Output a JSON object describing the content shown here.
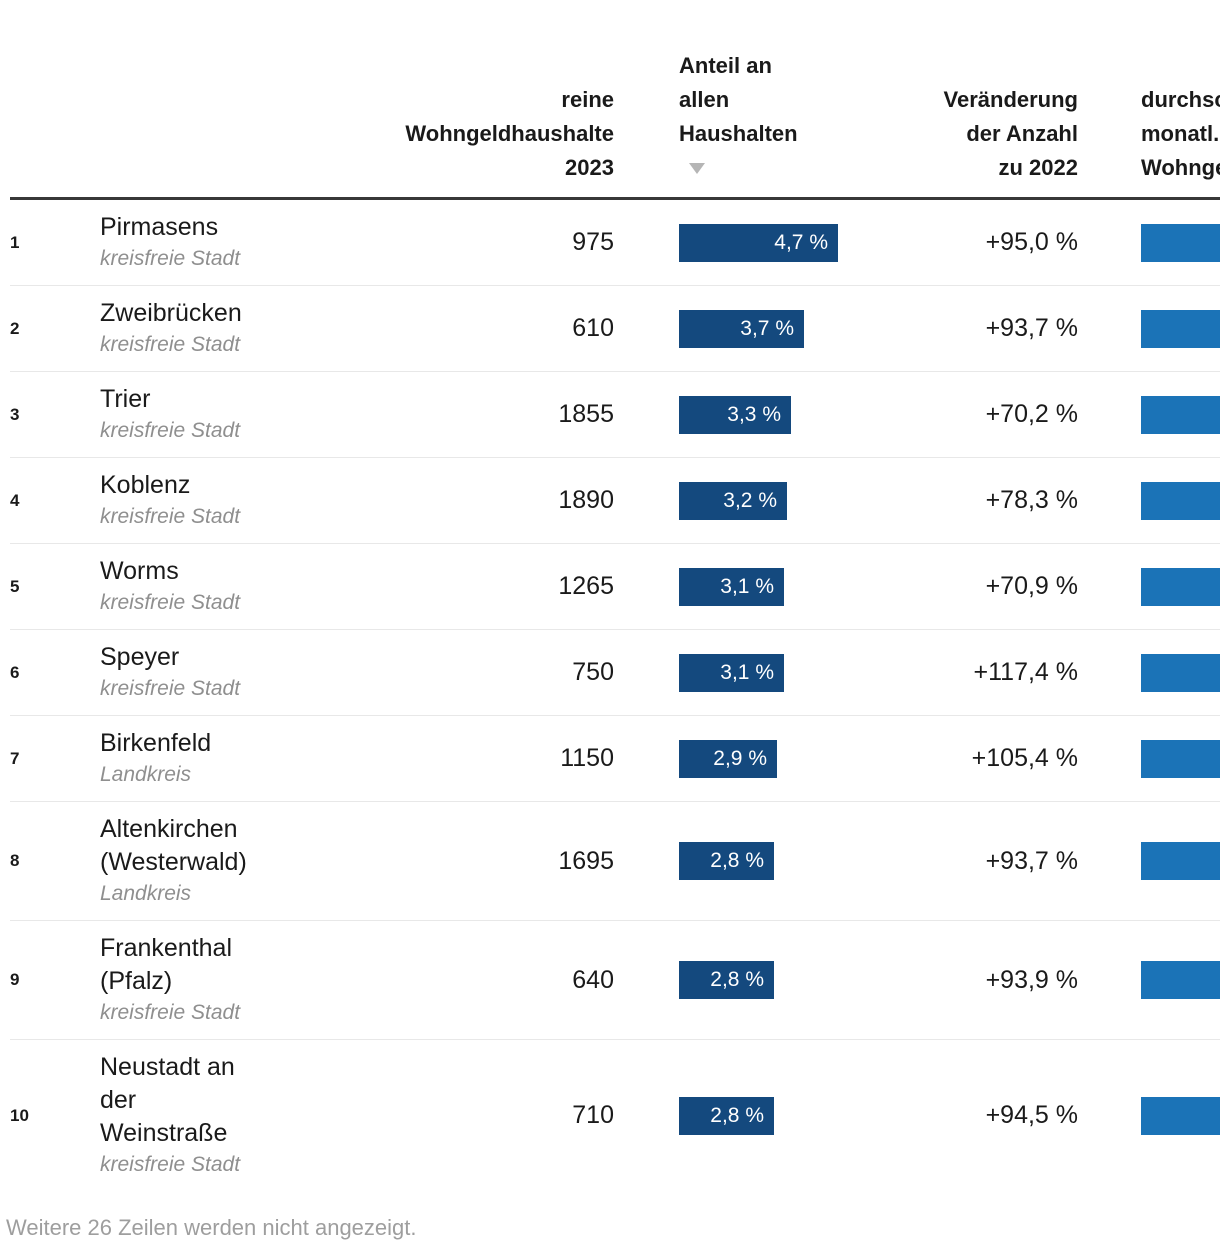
{
  "chart_data": {
    "type": "table",
    "columns": [
      "rank",
      "name",
      "reine Wohngeldhaushalte 2023",
      "Anteil an allen Haushalten",
      "Veränderung der Anzahl zu 2022",
      "durchschnittl. monatl. Wohngeld"
    ],
    "sort": {
      "column": "Anteil an allen Haushalten",
      "direction": "desc"
    },
    "share_axis_max_pct": 4.7,
    "rows": [
      {
        "rank": "1",
        "name_display": "Pirmasens",
        "category": "kreisfreie Stadt",
        "value_label": "975",
        "value_num": 975,
        "share_label": "4,7 %",
        "share_pct": 4.7,
        "change_label": "+95,0 %",
        "change_pct": 95.0
      },
      {
        "rank": "2",
        "name_display": "Zweibrücken",
        "category": "kreisfreie Stadt",
        "value_label": "610",
        "value_num": 610,
        "share_label": "3,7 %",
        "share_pct": 3.7,
        "change_label": "+93,7 %",
        "change_pct": 93.7
      },
      {
        "rank": "3",
        "name_display": "Trier",
        "category": "kreisfreie Stadt",
        "value_label": "1855",
        "value_num": 1855,
        "share_label": "3,3 %",
        "share_pct": 3.3,
        "change_label": "+70,2 %",
        "change_pct": 70.2
      },
      {
        "rank": "4",
        "name_display": "Koblenz",
        "category": "kreisfreie Stadt",
        "value_label": "1890",
        "value_num": 1890,
        "share_label": "3,2 %",
        "share_pct": 3.2,
        "change_label": "+78,3 %",
        "change_pct": 78.3
      },
      {
        "rank": "5",
        "name_display": "Worms",
        "category": "kreisfreie Stadt",
        "value_label": "1265",
        "value_num": 1265,
        "share_label": "3,1 %",
        "share_pct": 3.1,
        "change_label": "+70,9 %",
        "change_pct": 70.9
      },
      {
        "rank": "6",
        "name_display": "Speyer",
        "category": "kreisfreie Stadt",
        "value_label": "750",
        "value_num": 750,
        "share_label": "3,1 %",
        "share_pct": 3.1,
        "change_label": "+117,4 %",
        "change_pct": 117.4
      },
      {
        "rank": "7",
        "name_display": "Birkenfeld",
        "category": "Landkreis",
        "value_label": "1150",
        "value_num": 1150,
        "share_label": "2,9 %",
        "share_pct": 2.9,
        "change_label": "+105,4 %",
        "change_pct": 105.4
      },
      {
        "rank": "8",
        "name_display": "Altenkirchen\n(Westerwald)",
        "category": "Landkreis",
        "value_label": "1695",
        "value_num": 1695,
        "share_label": "2,8 %",
        "share_pct": 2.8,
        "change_label": "+93,7 %",
        "change_pct": 93.7
      },
      {
        "rank": "9",
        "name_display": "Frankenthal\n(Pfalz)",
        "category": "kreisfreie Stadt",
        "value_label": "640",
        "value_num": 640,
        "share_label": "2,8 %",
        "share_pct": 2.8,
        "change_label": "+93,9 %",
        "change_pct": 93.9
      },
      {
        "rank": "10",
        "name_display": "Neustadt an\nder\nWeinstraße",
        "category": "kreisfreie Stadt",
        "value_label": "710",
        "value_num": 710,
        "share_label": "2,8 %",
        "share_pct": 2.8,
        "change_label": "+94,5 %",
        "change_pct": 94.5
      }
    ]
  },
  "header": {
    "value_label": "reine\nWohngeldhaushalte\n2023",
    "share_label": "Anteil an\nallen\nHaushalten",
    "change_label": "Veränderung\nder Anzahl\nzu 2022",
    "avg_label": "durchschnittl.\nmonatl.\nWohngeld"
  },
  "footer": {
    "note": "Weitere 26 Zeilen werden nicht angezeigt."
  },
  "colors": {
    "share_bar": "#14497E",
    "avg_bar": "#1B73B7",
    "text": "#1A1A1A",
    "muted_text": "#8F8F8F",
    "footer_text": "#9E9E9E",
    "row_separator": "#E8E8E8",
    "header_border": "#383838",
    "sort_arrow": "#B5B5B5",
    "bar_label": "#FFFFFF"
  }
}
